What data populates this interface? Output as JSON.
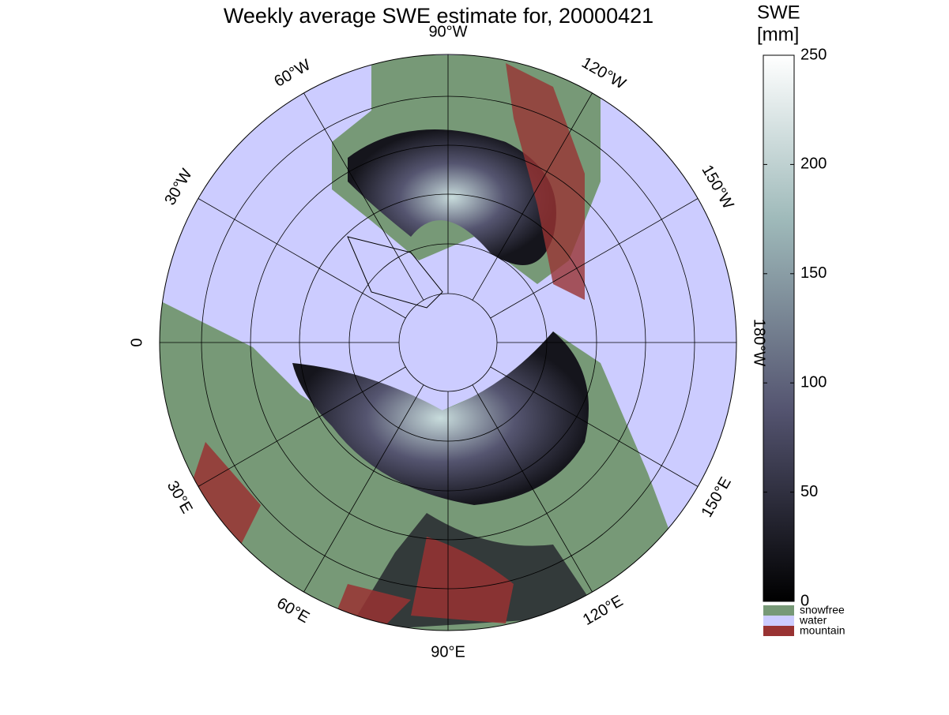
{
  "map": {
    "title": "Weekly average SWE estimate for, 20000421",
    "longitude_labels": [
      "90°W",
      "120°W",
      "150°W",
      "180°W",
      "150°E",
      "120°E",
      "90°E",
      "60°E",
      "30°E",
      "0",
      "30°W",
      "60°W"
    ],
    "colorbar": {
      "label": [
        "SWE",
        "[mm]"
      ],
      "lim": [
        0,
        250
      ],
      "ticks": [
        0,
        50,
        100,
        150,
        200,
        250
      ]
    },
    "legend": [
      {
        "label": "snowfree",
        "color": "#779977"
      },
      {
        "label": "water",
        "color": "#ccccff"
      },
      {
        "label": "mountain",
        "color": "#993333"
      }
    ]
  }
}
